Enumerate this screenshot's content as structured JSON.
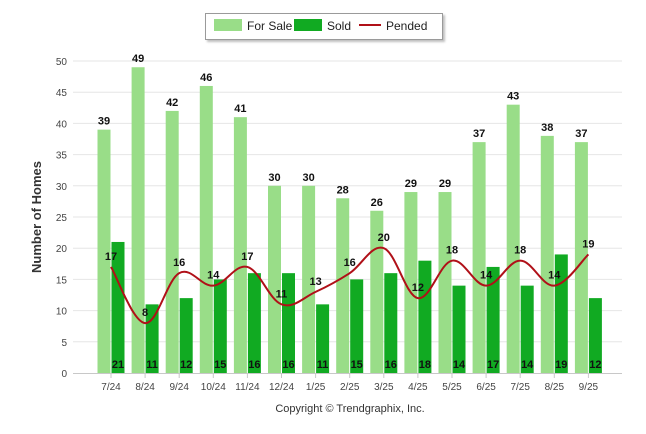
{
  "chart_data": {
    "type": "bar",
    "title": "",
    "xlabel": "",
    "ylabel": "Number of Homes",
    "ylim": [
      0,
      50
    ],
    "yticks": [
      0,
      5,
      10,
      15,
      20,
      25,
      30,
      35,
      40,
      45,
      50
    ],
    "grid": true,
    "legend_position": "top-center",
    "categories": [
      "7/24",
      "8/24",
      "9/24",
      "10/24",
      "11/24",
      "12/24",
      "1/25",
      "2/25",
      "3/25",
      "4/25",
      "5/25",
      "6/25",
      "7/25",
      "8/25",
      "9/25"
    ],
    "series": [
      {
        "name": "For Sale",
        "type": "bar",
        "color": "#99dd88",
        "values": [
          39,
          49,
          42,
          46,
          41,
          30,
          30,
          28,
          26,
          29,
          29,
          37,
          43,
          38,
          37
        ]
      },
      {
        "name": "Sold",
        "type": "bar",
        "color": "#11aa22",
        "values": [
          21,
          11,
          12,
          15,
          16,
          16,
          11,
          15,
          16,
          18,
          14,
          17,
          14,
          19,
          12
        ]
      },
      {
        "name": "Pended",
        "type": "line",
        "color": "#b01018",
        "values": [
          17,
          8,
          16,
          14,
          17,
          11,
          13,
          16,
          20,
          12,
          18,
          14,
          18,
          14,
          19
        ]
      }
    ],
    "copyright": "Copyright © Trendgraphix, Inc."
  }
}
